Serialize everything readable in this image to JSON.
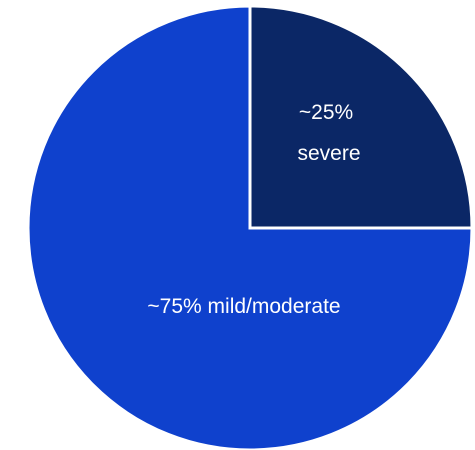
{
  "chart_data": {
    "type": "pie",
    "slices": [
      {
        "label_lines": [
          "~25%",
          "severe"
        ],
        "value": 25,
        "color": "#0b2766"
      },
      {
        "label_lines": [
          "~75% mild/moderate"
        ],
        "value": 75,
        "color": "#0f41cd"
      }
    ],
    "start_angle_deg": 0,
    "direction": "clockwise",
    "legend": "none",
    "title": ""
  }
}
